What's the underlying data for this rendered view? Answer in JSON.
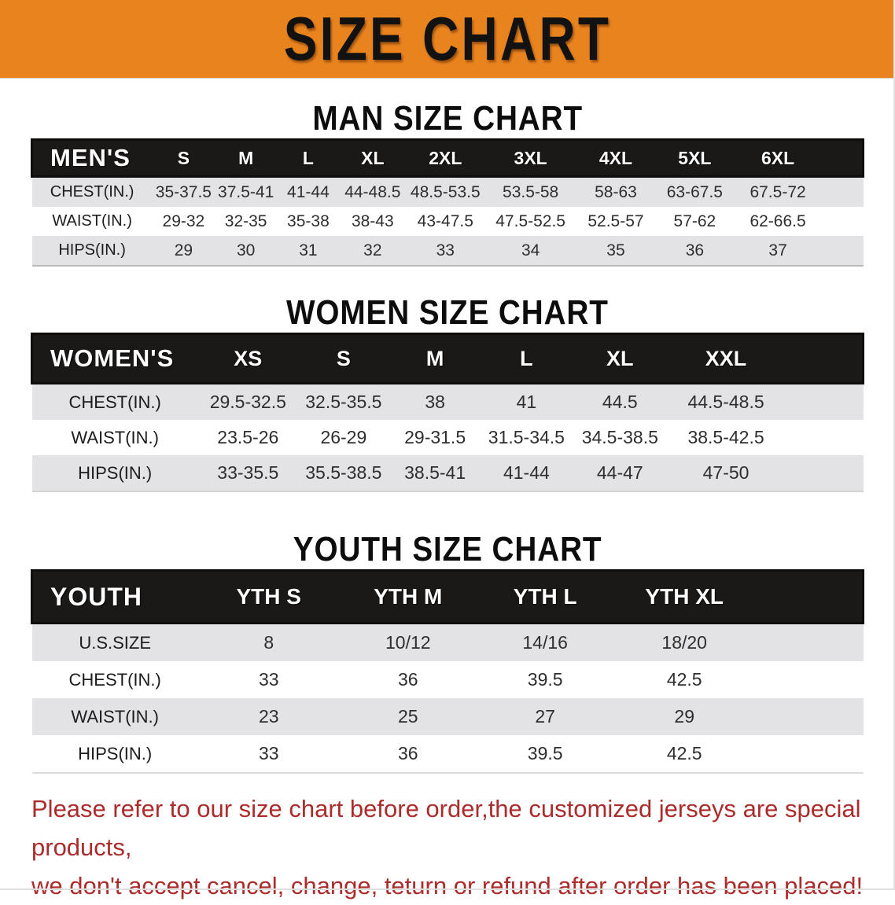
{
  "banner": {
    "title": "SIZE CHART",
    "bg_color": "#e8831e",
    "text_color": "#121212"
  },
  "sections": [
    {
      "heading": "MAN SIZE CHART",
      "header_label": "MEN'S",
      "columns": [
        "S",
        "M",
        "L",
        "XL",
        "2XL",
        "3XL",
        "4XL",
        "5XL",
        "6XL"
      ],
      "rows": [
        {
          "label": "CHEST(IN.)",
          "values": [
            "35-37.5",
            "37.5-41",
            "41-44",
            "44-48.5",
            "48.5-53.5",
            "53.5-58",
            "58-63",
            "63-67.5",
            "67.5-72"
          ]
        },
        {
          "label": "WAIST(IN.)",
          "values": [
            "29-32",
            "32-35",
            "35-38",
            "38-43",
            "43-47.5",
            "47.5-52.5",
            "52.5-57",
            "57-62",
            "62-66.5"
          ]
        },
        {
          "label": "HIPS(IN.)",
          "values": [
            "29",
            "30",
            "31",
            "32",
            "33",
            "34",
            "35",
            "36",
            "37"
          ]
        }
      ]
    },
    {
      "heading": "WOMEN SIZE CHART",
      "header_label": "WOMEN'S",
      "columns": [
        "XS",
        "S",
        "M",
        "L",
        "XL",
        "XXL"
      ],
      "rows": [
        {
          "label": "CHEST(IN.)",
          "values": [
            "29.5-32.5",
            "32.5-35.5",
            "38",
            "41",
            "44.5",
            "44.5-48.5"
          ]
        },
        {
          "label": "WAIST(IN.)",
          "values": [
            "23.5-26",
            "26-29",
            "29-31.5",
            "31.5-34.5",
            "34.5-38.5",
            "38.5-42.5"
          ]
        },
        {
          "label": "HIPS(IN.)",
          "values": [
            "33-35.5",
            "35.5-38.5",
            "38.5-41",
            "41-44",
            "44-47",
            "47-50"
          ]
        }
      ]
    },
    {
      "heading": "YOUTH SIZE CHART",
      "header_label": "YOUTH",
      "columns": [
        "YTH S",
        "YTH M",
        "YTH L",
        "YTH XL"
      ],
      "rows": [
        {
          "label": "U.S.SIZE",
          "values": [
            "8",
            "10/12",
            "14/16",
            "18/20"
          ]
        },
        {
          "label": "CHEST(IN.)",
          "values": [
            "33",
            "36",
            "39.5",
            "42.5"
          ]
        },
        {
          "label": "WAIST(IN.)",
          "values": [
            "23",
            "25",
            "27",
            "29"
          ]
        },
        {
          "label": "HIPS(IN.)",
          "values": [
            "33",
            "36",
            "39.5",
            "42.5"
          ]
        }
      ]
    }
  ],
  "footnote": {
    "line1": "Please refer to our size chart before order,the customized jerseys are special products,",
    "line2": "we don't accept cancel, change, teturn or refund after order has been placed!",
    "color": "#ac2b2b"
  }
}
